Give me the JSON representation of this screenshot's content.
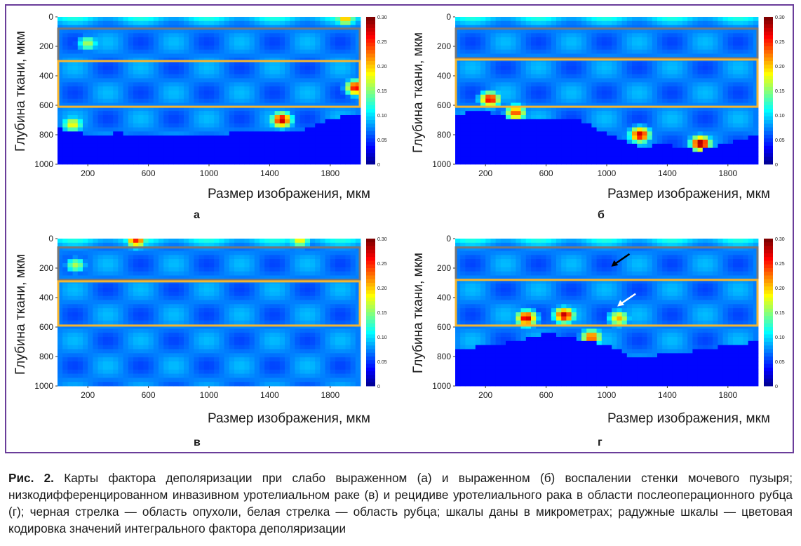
{
  "colors": {
    "frame": "#6a3d9a",
    "box_gray": "#777777",
    "box_orange": "#f5b530"
  },
  "colormap": "jet",
  "chart_data": [
    {
      "type": "heatmap",
      "panel_label": "а",
      "ylabel": "Глубина ткани, мкм",
      "xlabel": "Размер изображения, мкм",
      "xticks": [
        200,
        600,
        1000,
        1400,
        1800
      ],
      "yticks": [
        0,
        200,
        400,
        600,
        800,
        1000
      ],
      "xlim": [
        0,
        2000
      ],
      "ylim": [
        1000,
        0
      ],
      "y_inverted": true,
      "colorbar": {
        "ticks": [
          "0",
          "0.05",
          "0.10",
          "0.15",
          "0.20",
          "0.25",
          "0.30"
        ],
        "range": [
          0,
          0.3
        ]
      },
      "regions": [
        {
          "color": "gray",
          "depth_range": [
            80,
            300
          ]
        },
        {
          "color": "orange",
          "depth_range": [
            300,
            610
          ]
        }
      ],
      "tissue_boundary": {
        "x": [
          0,
          200,
          400,
          700,
          1000,
          1300,
          1400,
          1600,
          1800,
          2000
        ],
        "depth": [
          760,
          800,
          790,
          810,
          800,
          780,
          770,
          780,
          690,
          660
        ]
      },
      "hotspots": [
        {
          "x": 1480,
          "depth": 700,
          "value": 0.28
        },
        {
          "x": 1970,
          "depth": 480,
          "value": 0.27
        },
        {
          "x": 100,
          "depth": 730,
          "value": 0.18
        },
        {
          "x": 200,
          "depth": 180,
          "value": 0.15
        },
        {
          "x": 1900,
          "depth": 10,
          "value": 0.2
        }
      ]
    },
    {
      "type": "heatmap",
      "panel_label": "б",
      "ylabel": "Глубина ткани, мкм",
      "xlabel": "Размер изображения, мкм",
      "xticks": [
        200,
        600,
        1000,
        1400,
        1800
      ],
      "yticks": [
        0,
        200,
        400,
        600,
        800,
        1000
      ],
      "xlim": [
        0,
        2000
      ],
      "ylim": [
        1000,
        0
      ],
      "y_inverted": true,
      "colorbar": {
        "ticks": [
          "0",
          "0.05",
          "0.10",
          "0.15",
          "0.20",
          "0.25",
          "0.30"
        ],
        "range": [
          0,
          0.3
        ]
      },
      "regions": [
        {
          "color": "gray",
          "depth_range": [
            80,
            280
          ]
        },
        {
          "color": "orange",
          "depth_range": [
            290,
            610
          ]
        }
      ],
      "tissue_boundary": {
        "x": [
          0,
          200,
          400,
          600,
          800,
          1000,
          1200,
          1400,
          1600,
          1800,
          2000
        ],
        "depth": [
          660,
          640,
          700,
          680,
          690,
          790,
          880,
          870,
          910,
          860,
          800
        ]
      },
      "hotspots": [
        {
          "x": 1620,
          "depth": 860,
          "value": 0.3
        },
        {
          "x": 1220,
          "depth": 800,
          "value": 0.28
        },
        {
          "x": 230,
          "depth": 560,
          "value": 0.27
        },
        {
          "x": 400,
          "depth": 650,
          "value": 0.24
        }
      ]
    },
    {
      "type": "heatmap",
      "panel_label": "в",
      "ylabel": "Глубина ткани, мкм",
      "xlabel": "Размер изображения, мкм",
      "xticks": [
        200,
        600,
        1000,
        1400,
        1800
      ],
      "yticks": [
        0,
        200,
        400,
        600,
        800,
        1000
      ],
      "xlim": [
        0,
        2000
      ],
      "ylim": [
        1000,
        0
      ],
      "y_inverted": true,
      "colorbar": {
        "ticks": [
          "0",
          "0.05",
          "0.10",
          "0.15",
          "0.20",
          "0.25",
          "0.30"
        ],
        "range": [
          0,
          0.3
        ]
      },
      "regions": [
        {
          "color": "gray",
          "depth_range": [
            60,
            280
          ]
        },
        {
          "color": "orange",
          "depth_range": [
            290,
            590
          ]
        }
      ],
      "tissue_boundary": null,
      "hotspots": [
        {
          "x": 520,
          "depth": 10,
          "value": 0.25
        },
        {
          "x": 120,
          "depth": 180,
          "value": 0.15
        },
        {
          "x": 1600,
          "depth": 10,
          "value": 0.18
        }
      ]
    },
    {
      "type": "heatmap",
      "panel_label": "г",
      "ylabel": "Глубина ткани, мкм",
      "xlabel": "Размер изображения, мкм",
      "xticks": [
        200,
        600,
        1000,
        1400,
        1800
      ],
      "yticks": [
        0,
        200,
        400,
        600,
        800,
        1000
      ],
      "xlim": [
        0,
        2000
      ],
      "ylim": [
        1000,
        0
      ],
      "y_inverted": true,
      "colorbar": {
        "ticks": [
          "0",
          "0.05",
          "0.10",
          "0.15",
          "0.20",
          "0.25",
          "0.30"
        ],
        "range": [
          0,
          0.3
        ]
      },
      "regions": [
        {
          "color": "gray",
          "depth_range": [
            60,
            280
          ]
        },
        {
          "color": "orange",
          "depth_range": [
            280,
            590
          ]
        }
      ],
      "tissue_boundary": {
        "x": [
          0,
          200,
          400,
          600,
          800,
          1000,
          1200,
          1400,
          1600,
          1800,
          2000
        ],
        "depth": [
          760,
          720,
          700,
          640,
          680,
          720,
          820,
          780,
          760,
          720,
          700
        ]
      },
      "hotspots": [
        {
          "x": 470,
          "depth": 540,
          "value": 0.28
        },
        {
          "x": 720,
          "depth": 520,
          "value": 0.28
        },
        {
          "x": 900,
          "depth": 670,
          "value": 0.24
        },
        {
          "x": 1080,
          "depth": 540,
          "value": 0.2
        }
      ],
      "arrows": [
        {
          "color": "black",
          "x": 1030,
          "depth": 190,
          "meaning": "tumor"
        },
        {
          "color": "white",
          "x": 1070,
          "depth": 460,
          "meaning": "scar"
        }
      ]
    }
  ],
  "caption": {
    "figure_label": "Рис. 2.",
    "text": "Карты фактора деполяризации при слабо выраженном (а) и выраженном (б) воспалении стенки мочевого пузыря; низкодифференцированном инвазивном уротелиальном раке (в) и рецидиве уротелиального рака в области послеоперационного рубца (г); черная стрелка — область опухоли, белая стрелка — область рубца; шкалы даны в микрометрах; радужные шкалы — цветовая кодировка значений интегрального фактора деполяризации"
  }
}
